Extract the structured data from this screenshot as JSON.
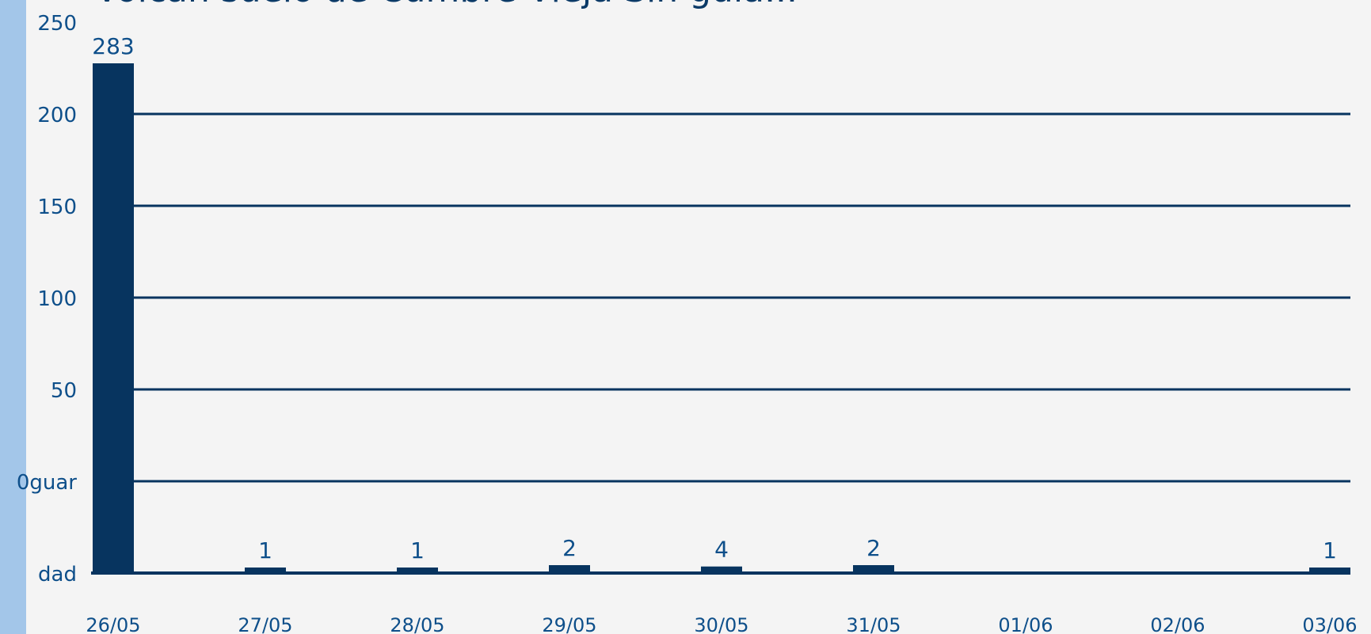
{
  "title": "Volcán suelo de Cumbre Vieja Sin guía...",
  "colors": {
    "bar": "#07345f",
    "gridline": "#07345f",
    "label_text": "#0e4f8a",
    "background": "#f4f4f4",
    "side_strip": "#a3c6e9"
  },
  "chart_data": {
    "type": "bar",
    "title": "",
    "xlabel": "",
    "ylabel": "",
    "ylim": [
      0,
      250
    ],
    "y_ticks": [
      "dad",
      "0guar",
      "50",
      "100",
      "150",
      "200",
      "250"
    ],
    "categories": [
      "26/05",
      "27/05",
      "28/05",
      "29/05",
      "30/05",
      "31/05",
      "01/06",
      "02/06",
      "03/06"
    ],
    "series": [
      {
        "values": [
          283,
          1,
          1,
          2,
          4,
          2,
          0,
          0,
          1
        ],
        "data_labels": [
          "283",
          "1",
          "1",
          "2",
          "4",
          "2",
          "",
          "",
          "1"
        ]
      }
    ],
    "grid": true,
    "legend": "none"
  }
}
